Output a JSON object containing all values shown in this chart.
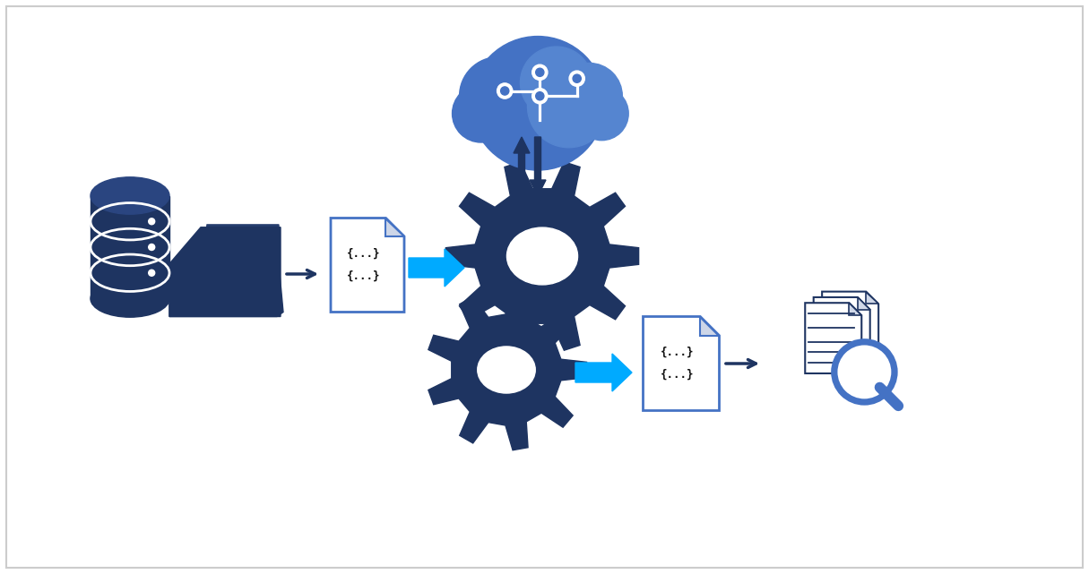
{
  "background_color": "#ffffff",
  "border_color": "#cccccc",
  "dark_navy": "#1e3461",
  "blue_bright": "#4472c4",
  "arrow_blue": "#00aaff",
  "cloud_blue": "#4472c4",
  "figsize": [
    12.15,
    6.41
  ],
  "dpi": 100
}
